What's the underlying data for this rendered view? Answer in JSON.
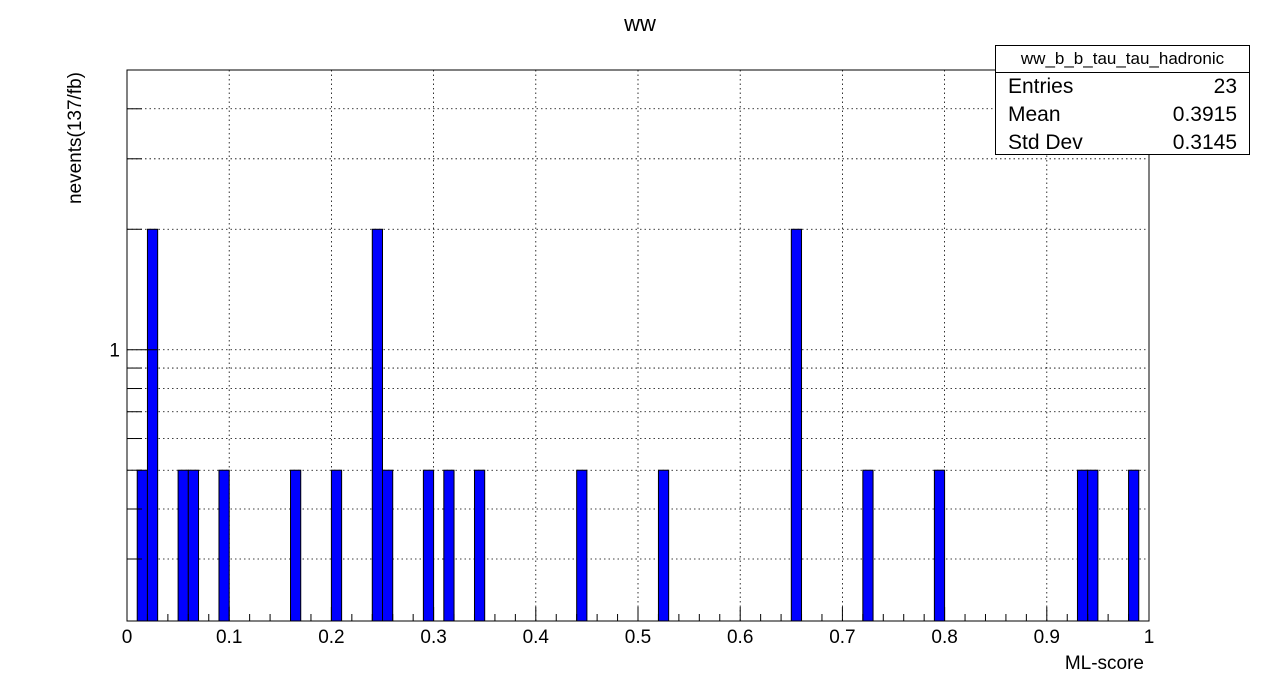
{
  "chart_data": {
    "type": "bar",
    "title": "ww",
    "xlabel": "ML-score",
    "ylabel": "nevents(137/fb)",
    "x_range": [
      0,
      1
    ],
    "y_scale": "log",
    "y_range": [
      0.21,
      5.0
    ],
    "y_tick_labels": [
      "1"
    ],
    "x_tick_labels": [
      "0",
      "0.1",
      "0.2",
      "0.3",
      "0.4",
      "0.5",
      "0.6",
      "0.7",
      "0.8",
      "0.9",
      "1"
    ],
    "bin_width": 0.01,
    "grid": true,
    "bar_color": "#0000ff",
    "series": [
      {
        "bin_centers": [
          0.015,
          0.025,
          0.055,
          0.065,
          0.095,
          0.165,
          0.205,
          0.245,
          0.255,
          0.295,
          0.315,
          0.345,
          0.445,
          0.525,
          0.655,
          0.725,
          0.795,
          0.935,
          0.945,
          0.985
        ],
        "values": [
          0.5,
          2.0,
          0.5,
          0.5,
          0.5,
          0.5,
          0.5,
          2.0,
          0.5,
          0.5,
          0.5,
          0.5,
          0.5,
          0.5,
          2.0,
          0.5,
          0.5,
          0.5,
          0.5,
          0.5
        ]
      }
    ]
  },
  "stats": {
    "name": "ww_b_b_tau_tau_hadronic",
    "rows": [
      {
        "label": "Entries",
        "value": "23"
      },
      {
        "label": "Mean",
        "value": "0.3915"
      },
      {
        "label": "Std Dev",
        "value": "0.3145"
      }
    ]
  }
}
